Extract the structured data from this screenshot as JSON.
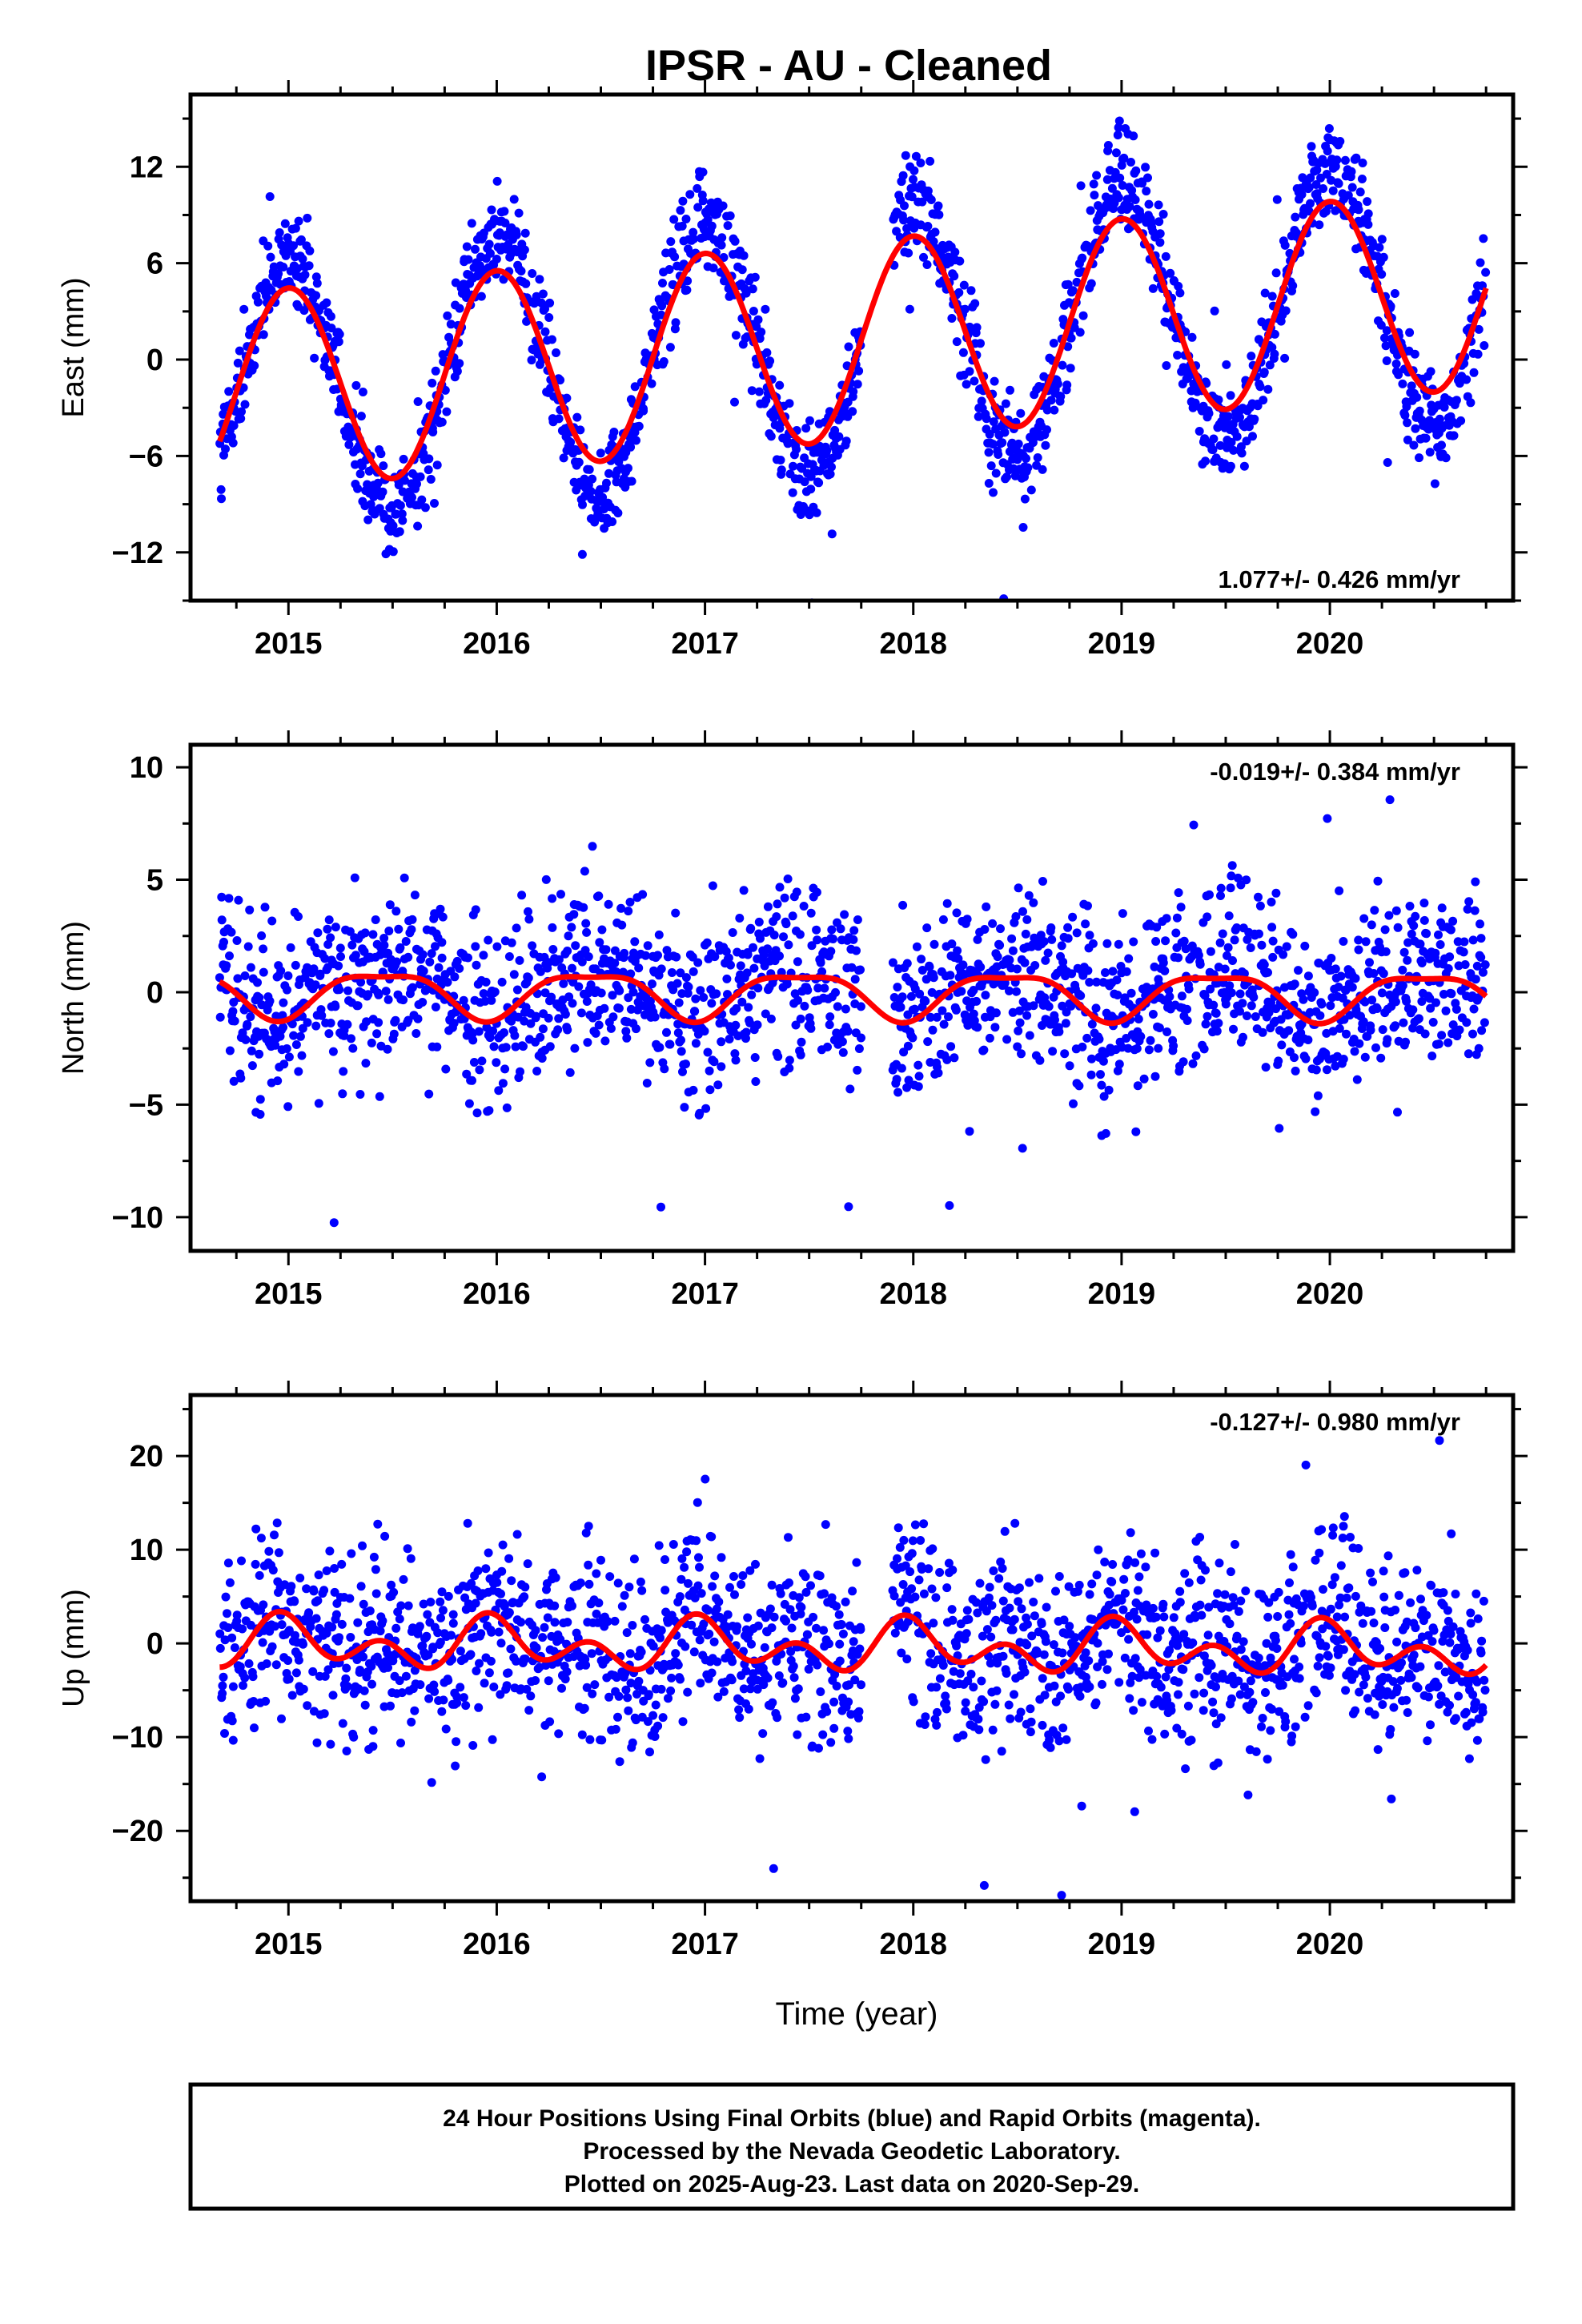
{
  "figure": {
    "title": "IPSR  - AU - Cleaned",
    "footer": [
      "24 Hour Positions Using Final Orbits (blue) and Rapid Orbits (magenta).",
      "Processed by the Nevada Geodetic Laboratory.",
      "Plotted on 2025-Aug-23. Last data on 2020-Sep-29."
    ]
  },
  "chart_data": [
    {
      "type": "scatter",
      "ylabel": "East (mm)",
      "xlabel": "",
      "rate_label": "1.077+/- 0.426 mm/yr",
      "rate_position": "bottom-right",
      "xlim": [
        2014.53,
        2020.88
      ],
      "ylim": [
        -15,
        16.5
      ],
      "x_ticks": [
        2015,
        2016,
        2017,
        2018,
        2019,
        2020
      ],
      "x_tick_labels": [
        "2015",
        "2016",
        "2017",
        "2018",
        "2019",
        "2020"
      ],
      "y_ticks": [
        -12,
        -6,
        0,
        6,
        12
      ],
      "y_tick_labels": [
        "−12",
        "−6",
        "0",
        "6",
        "12"
      ],
      "grid": false,
      "series": [
        {
          "kind": "points",
          "color": "#0000ff",
          "data_start": 2014.67,
          "data_end": 2020.75,
          "gap": [
            2017.75,
            2017.9
          ],
          "model": {
            "offset": -2.1,
            "slope": 1.077,
            "t0": 2014.67,
            "annual_amp": 8.1,
            "annual_phase": 2015.0,
            "semi_amp": 0.0,
            "semi_phase": 2015.0
          },
          "noise_sd": 1.6,
          "n_approx": 2100
        },
        {
          "kind": "line",
          "color": "#ff0000",
          "model": {
            "offset": -2.1,
            "slope": 1.077,
            "t0": 2014.67,
            "annual_amp": 6.2,
            "annual_phase": 2015.0,
            "semi_amp": 0.0,
            "semi_phase": 2015.0
          },
          "x_range": [
            2014.67,
            2020.75
          ]
        }
      ]
    },
    {
      "type": "scatter",
      "ylabel": "North (mm)",
      "xlabel": "",
      "rate_label": "-0.019+/- 0.384 mm/yr",
      "rate_position": "top-right",
      "xlim": [
        2014.53,
        2020.88
      ],
      "ylim": [
        -11.5,
        11
      ],
      "x_ticks": [
        2015,
        2016,
        2017,
        2018,
        2019,
        2020
      ],
      "x_tick_labels": [
        "2015",
        "2016",
        "2017",
        "2018",
        "2019",
        "2020"
      ],
      "y_ticks": [
        -10,
        -5,
        0,
        5,
        10
      ],
      "y_tick_labels": [
        "−10",
        "−5",
        "0",
        "5",
        "10"
      ],
      "grid": false,
      "series": [
        {
          "kind": "points",
          "color": "#0000ff",
          "data_start": 2014.67,
          "data_end": 2020.75,
          "gap": [
            2017.75,
            2017.9
          ],
          "model": {
            "offset": 0.0,
            "slope": -0.019,
            "t0": 2014.67,
            "annual_amp": 1.0,
            "annual_phase": 2015.45,
            "semi_amp": 0.3,
            "semi_phase": 2015.2
          },
          "noise_sd": 1.9,
          "n_approx": 2100
        },
        {
          "kind": "line",
          "color": "#ff0000",
          "model": {
            "offset": 0.0,
            "slope": -0.019,
            "t0": 2014.67,
            "annual_amp": 1.0,
            "annual_phase": 2015.45,
            "semi_amp": 0.3,
            "semi_phase": 2015.2
          },
          "x_range": [
            2014.67,
            2020.75
          ]
        }
      ]
    },
    {
      "type": "scatter",
      "ylabel": "Up (mm)",
      "xlabel": "Time (year)",
      "rate_label": "-0.127+/- 0.980 mm/yr",
      "rate_position": "top-right",
      "xlim": [
        2014.53,
        2020.88
      ],
      "ylim": [
        -27.5,
        26.5
      ],
      "x_ticks": [
        2015,
        2016,
        2017,
        2018,
        2019,
        2020
      ],
      "x_tick_labels": [
        "2015",
        "2016",
        "2017",
        "2018",
        "2019",
        "2020"
      ],
      "y_ticks": [
        -20,
        -10,
        0,
        10,
        20
      ],
      "y_tick_labels": [
        "−20",
        "−10",
        "0",
        "10",
        "20"
      ],
      "grid": false,
      "series": [
        {
          "kind": "points",
          "color": "#0000ff",
          "data_start": 2014.67,
          "data_end": 2020.75,
          "gap": [
            2017.75,
            2017.9
          ],
          "model": {
            "offset": 0.0,
            "slope": -0.127,
            "t0": 2014.67,
            "annual_amp": 1.6,
            "annual_phase": 2015.0,
            "semi_amp": 1.9,
            "semi_phase": 2014.95
          },
          "noise_sd": 4.8,
          "n_approx": 2100
        },
        {
          "kind": "line",
          "color": "#ff0000",
          "model": {
            "offset": 0.0,
            "slope": -0.127,
            "t0": 2014.67,
            "annual_amp": 1.6,
            "annual_phase": 2015.0,
            "semi_amp": 1.9,
            "semi_phase": 2014.95
          },
          "x_range": [
            2014.67,
            2020.75
          ]
        }
      ]
    }
  ]
}
